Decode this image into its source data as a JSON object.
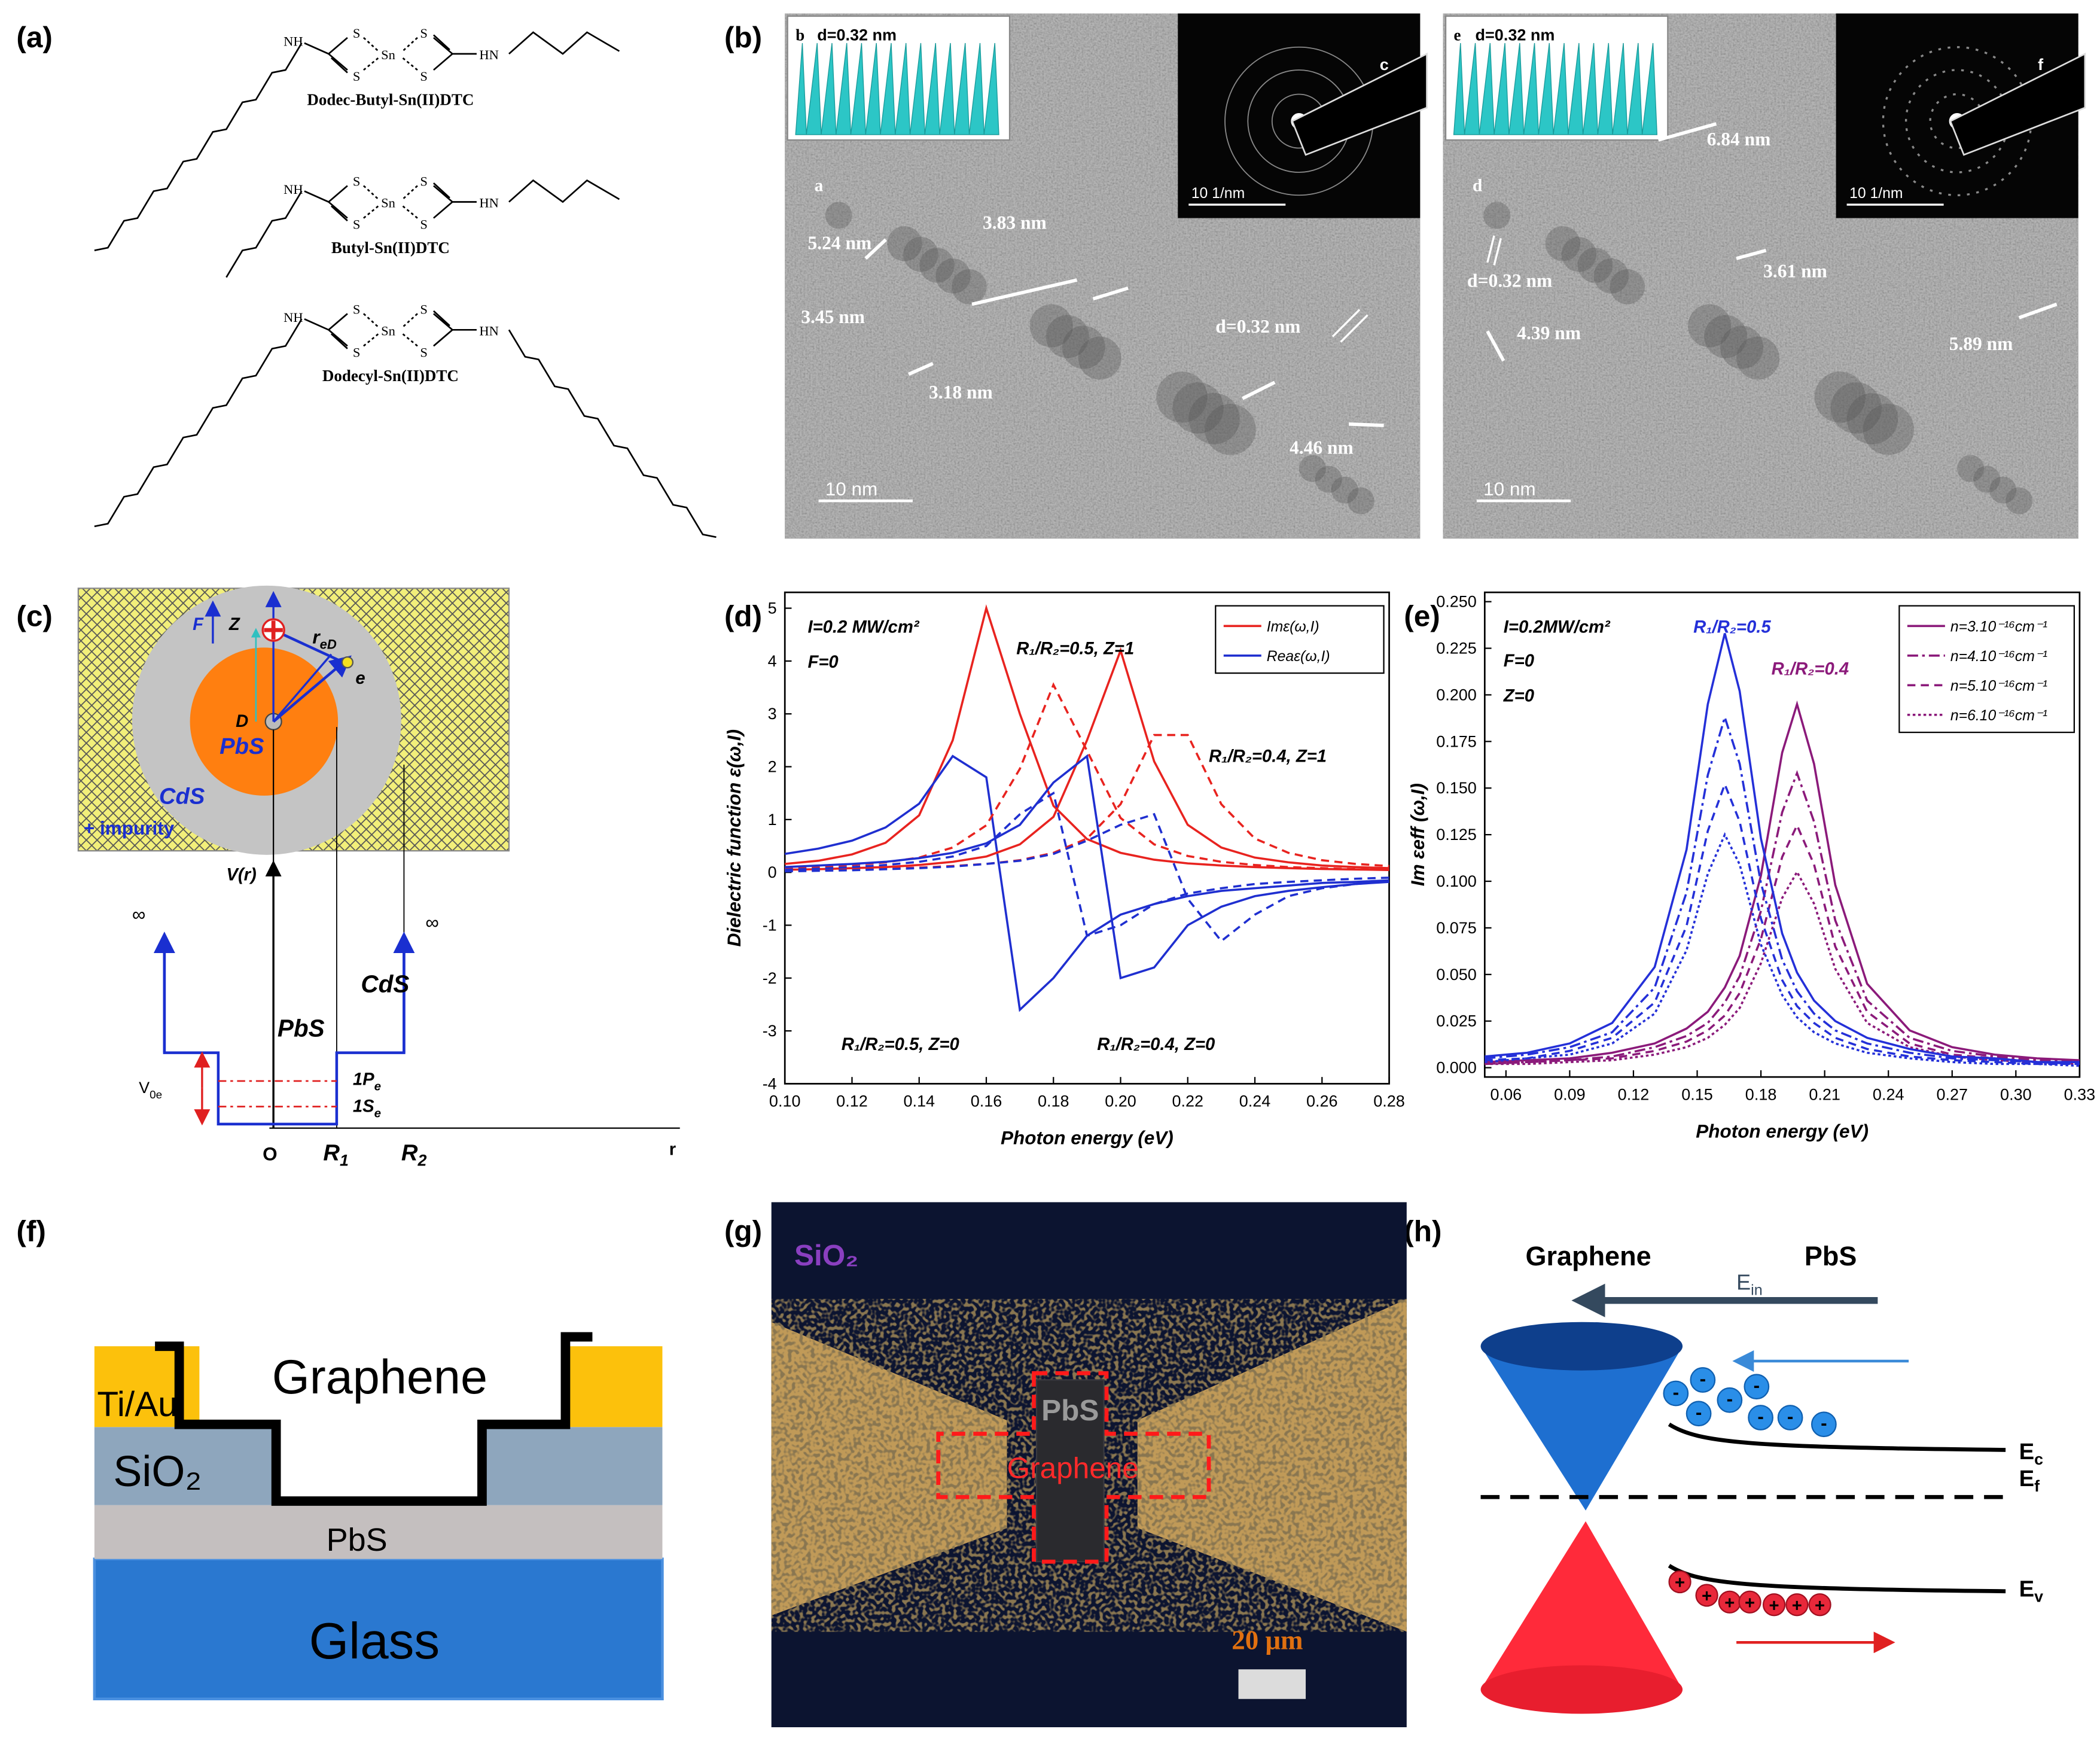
{
  "panel_labels": [
    "(a)",
    "(b)",
    "(c)",
    "(d)",
    "(e)",
    "(f)",
    "(g)",
    "(h)"
  ],
  "molecules": {
    "names": [
      "Dodec-Butyl-Sn(II)DTC",
      "Butyl-Sn(II)DTC",
      "Dodecyl-Sn(II)DTC"
    ],
    "nh": "NH",
    "hn": "HN",
    "s": "S",
    "sn": "Sn"
  },
  "tem": [
    {
      "fft_label": "b",
      "spacing": "d=0.32 nm",
      "saed_label": "c",
      "saed_scale": "10 1/nm",
      "image_label": "a",
      "sizes": [
        "5.24 nm",
        "3.83 nm",
        "3.45 nm",
        "3.18 nm",
        "4.46 nm"
      ],
      "lattice": "d=0.32 nm",
      "scale": "10 nm"
    },
    {
      "fft_label": "e",
      "spacing": "d=0.32 nm",
      "saed_label": "f",
      "saed_scale": "10 1/nm",
      "image_label": "d",
      "sizes": [
        "6.84 nm",
        "3.61 nm",
        "4.39 nm",
        "5.89 nm"
      ],
      "lattice": "d=0.32 nm",
      "scale": "10 nm"
    }
  ],
  "core_shell": {
    "field": "F",
    "z": "Z",
    "r_ed": {
      "base": "r",
      "sub": "eD"
    },
    "electron": "e",
    "d": "D",
    "core": "PbS",
    "shell": "CdS",
    "impurity": "+ impurity",
    "potential": "V(r)",
    "infinity": "∞",
    "shell_region": "CdS",
    "core_region": "PbS",
    "level_1p": {
      "base": "1P",
      "sub": "e"
    },
    "level_1s": {
      "base": "1S",
      "sub": "e"
    },
    "v0e": {
      "base": "V",
      "sub": "0e"
    },
    "origin": "O",
    "r1": {
      "base": "R",
      "sub": "1"
    },
    "r2": {
      "base": "R",
      "sub": "2"
    },
    "r_axis": "r"
  },
  "chart_data": [
    {
      "type": "line",
      "x_label": "Photon energy (eV)",
      "y_label": "Dielectric function ε(ω,I)",
      "x": [
        0.1,
        0.11,
        0.12,
        0.13,
        0.14,
        0.15,
        0.16,
        0.17,
        0.18,
        0.19,
        0.2,
        0.21,
        0.22,
        0.23,
        0.24,
        0.25,
        0.26,
        0.27,
        0.28
      ],
      "xlim": [
        0.1,
        0.28
      ],
      "xticks": [
        {
          "value": 0.1,
          "label": "0.10"
        },
        0.12,
        0.14,
        0.16,
        0.18,
        {
          "value": 0.2,
          "label": "0.20"
        },
        0.22,
        0.24,
        0.26,
        0.28
      ],
      "ylim": [
        -4,
        5.3
      ],
      "yticks": [
        -4,
        -3,
        -2,
        -1,
        0,
        1,
        2,
        3,
        4,
        5
      ],
      "legend": "upper right",
      "annotations": [
        {
          "text": "I=0.2 MW/cm²",
          "color": "#000000"
        },
        {
          "text": "F=0",
          "color": "#000000"
        },
        {
          "text": "R₁/R₂=0.5, Z=1",
          "color": "#000000"
        },
        {
          "text": "R₁/R₂=0.4, Z=1",
          "color": "#000000"
        },
        {
          "text": "R₁/R₂=0.5, Z=0",
          "color": "#000000"
        },
        {
          "text": "R₁/R₂=0.4, Z=0",
          "color": "#000000"
        }
      ],
      "series": [
        {
          "name": "Imε(ω,I)",
          "color": "#e8231f",
          "dash": "solid",
          "values": [
            0.16,
            0.22,
            0.34,
            0.56,
            1.08,
            2.5,
            5.0,
            3.0,
            1.26,
            0.63,
            0.37,
            0.24,
            0.17,
            0.13,
            0.1,
            0.08,
            0.065,
            0.055,
            0.045
          ]
        },
        {
          "name": "Reaε(ω,I)",
          "color": "#1f2fd0",
          "dash": "solid",
          "values": [
            0.35,
            0.45,
            0.6,
            0.85,
            1.3,
            2.2,
            1.8,
            -2.6,
            -2.0,
            -1.2,
            -0.8,
            -0.6,
            -0.45,
            -0.35,
            -0.3,
            -0.25,
            -0.2,
            -0.18,
            -0.15
          ]
        },
        {
          "color": "#e8231f",
          "dash": "solid",
          "values": [
            0.05,
            0.06,
            0.08,
            0.1,
            0.14,
            0.2,
            0.3,
            0.53,
            1.05,
            2.5,
            4.2,
            2.1,
            0.9,
            0.47,
            0.28,
            0.19,
            0.13,
            0.1,
            0.08
          ]
        },
        {
          "color": "#e8231f",
          "dash": "dash",
          "values": [
            0.08,
            0.1,
            0.14,
            0.19,
            0.28,
            0.47,
            0.89,
            1.96,
            3.55,
            2.3,
            1.03,
            0.53,
            0.31,
            0.2,
            0.14,
            0.1,
            0.08,
            0.06,
            0.05
          ]
        },
        {
          "color": "#e8231f",
          "dash": "dash",
          "values": [
            0.04,
            0.05,
            0.06,
            0.07,
            0.09,
            0.12,
            0.16,
            0.23,
            0.37,
            0.64,
            1.29,
            2.6,
            2.6,
            1.29,
            0.64,
            0.37,
            0.23,
            0.16,
            0.12
          ]
        },
        {
          "color": "#1f2fd0",
          "dash": "solid",
          "values": [
            0.1,
            0.13,
            0.16,
            0.2,
            0.27,
            0.37,
            0.55,
            0.9,
            1.7,
            2.2,
            -2.0,
            -1.8,
            -1.0,
            -0.65,
            -0.45,
            -0.35,
            -0.28,
            -0.22,
            -0.18
          ]
        },
        {
          "color": "#1f2fd0",
          "dash": "dash",
          "values": [
            0.05,
            0.07,
            0.1,
            0.14,
            0.2,
            0.3,
            0.5,
            1.1,
            1.5,
            -1.2,
            -1.0,
            -0.6,
            -0.4,
            -0.3,
            -0.22,
            -0.18,
            -0.15,
            -0.12,
            -0.1
          ]
        },
        {
          "color": "#1f2fd0",
          "dash": "dash",
          "values": [
            0.02,
            0.03,
            0.04,
            0.06,
            0.08,
            0.11,
            0.16,
            0.22,
            0.35,
            0.6,
            0.9,
            1.1,
            -0.5,
            -1.3,
            -0.8,
            -0.45,
            -0.3,
            -0.22,
            -0.17
          ]
        }
      ]
    },
    {
      "type": "line",
      "x_label": "Photon energy (eV)",
      "y_label": "Im εeff (ω,I)",
      "x": [
        0.05,
        0.07,
        0.09,
        0.11,
        0.13,
        0.145,
        0.155,
        0.163,
        0.17,
        0.18,
        0.19,
        0.197,
        0.205,
        0.215,
        0.23,
        0.25,
        0.27,
        0.29,
        0.31,
        0.33
      ],
      "xlim": [
        0.05,
        0.33
      ],
      "xticks": [
        0.06,
        0.09,
        0.12,
        0.15,
        0.18,
        0.21,
        0.24,
        0.27,
        {
          "value": 0.3,
          "label": "0.30"
        },
        0.33
      ],
      "ylim": [
        -0.005,
        0.255
      ],
      "yticks": [
        {
          "value": 0,
          "label": "0.000"
        },
        {
          "value": 0.025,
          "label": "0.025"
        },
        {
          "value": 0.05,
          "label": "0.050"
        },
        {
          "value": 0.075,
          "label": "0.075"
        },
        {
          "value": 0.1,
          "label": "0.100"
        },
        {
          "value": 0.125,
          "label": "0.125"
        },
        {
          "value": 0.15,
          "label": "0.150"
        },
        {
          "value": 0.175,
          "label": "0.175"
        },
        {
          "value": 0.2,
          "label": "0.200"
        },
        {
          "value": 0.225,
          "label": "0.225"
        },
        {
          "value": 0.25,
          "label": "0.250"
        }
      ],
      "legend": "upper right",
      "annotations": [
        {
          "text": "I=0.2MW/cm²",
          "color": "#000000"
        },
        {
          "text": "F=0",
          "color": "#000000"
        },
        {
          "text": "Z=0",
          "color": "#000000"
        },
        {
          "text": "R₁/R₂=0.5",
          "color": "#2430d8"
        },
        {
          "text": "R₁/R₂=0.4",
          "color": "#8b1a7a"
        }
      ],
      "series": [
        {
          "name": "n=3.10⁻¹⁶cm⁻¹",
          "color": "#8b1a7a",
          "dash": "solid",
          "values": [
            0.003,
            0.004,
            0.005,
            0.008,
            0.013,
            0.021,
            0.03,
            0.043,
            0.06,
            0.103,
            0.169,
            0.195,
            0.163,
            0.098,
            0.045,
            0.02,
            0.011,
            0.007,
            0.005,
            0.004
          ]
        },
        {
          "name": "n=4.10⁻¹⁶cm⁻¹",
          "color": "#8b1a7a",
          "dash": "dashdot",
          "values": [
            0.002,
            0.003,
            0.004,
            0.006,
            0.011,
            0.017,
            0.024,
            0.035,
            0.049,
            0.084,
            0.137,
            0.158,
            0.132,
            0.079,
            0.036,
            0.016,
            0.009,
            0.006,
            0.004,
            0.003
          ]
        },
        {
          "name": "n=5.10⁻¹⁶cm⁻¹",
          "color": "#8b1a7a",
          "dash": "dash",
          "values": [
            0.002,
            0.003,
            0.004,
            0.005,
            0.009,
            0.014,
            0.02,
            0.028,
            0.04,
            0.069,
            0.113,
            0.13,
            0.109,
            0.065,
            0.03,
            0.013,
            0.007,
            0.005,
            0.003,
            0.002
          ]
        },
        {
          "name": "n=6.10⁻¹⁶cm⁻¹",
          "color": "#8b1a7a",
          "dash": "dot",
          "values": [
            0.002,
            0.002,
            0.003,
            0.004,
            0.007,
            0.011,
            0.016,
            0.023,
            0.032,
            0.056,
            0.091,
            0.105,
            0.088,
            0.053,
            0.024,
            0.011,
            0.006,
            0.004,
            0.003,
            0.002
          ]
        },
        {
          "color": "#2430d8",
          "dash": "solid",
          "values": [
            0.006,
            0.008,
            0.013,
            0.024,
            0.054,
            0.117,
            0.195,
            0.233,
            0.202,
            0.123,
            0.072,
            0.051,
            0.036,
            0.025,
            0.016,
            0.01,
            0.006,
            0.005,
            0.003,
            0.003
          ]
        },
        {
          "color": "#2430d8",
          "dash": "dashdot",
          "values": [
            0.005,
            0.007,
            0.011,
            0.019,
            0.043,
            0.094,
            0.157,
            0.188,
            0.163,
            0.099,
            0.058,
            0.041,
            0.029,
            0.02,
            0.013,
            0.008,
            0.005,
            0.004,
            0.003,
            0.002
          ]
        },
        {
          "color": "#2430d8",
          "dash": "dash",
          "values": [
            0.004,
            0.005,
            0.009,
            0.016,
            0.035,
            0.076,
            0.127,
            0.152,
            0.132,
            0.08,
            0.047,
            0.033,
            0.024,
            0.016,
            0.01,
            0.006,
            0.004,
            0.003,
            0.002,
            0.002
          ]
        },
        {
          "color": "#2430d8",
          "dash": "dot",
          "values": [
            0.003,
            0.005,
            0.007,
            0.013,
            0.029,
            0.063,
            0.104,
            0.125,
            0.109,
            0.066,
            0.039,
            0.027,
            0.019,
            0.013,
            0.008,
            0.005,
            0.003,
            0.002,
            0.002,
            0.001
          ]
        }
      ]
    }
  ],
  "device": {
    "contact": "Ti/Au",
    "graphene": "Graphene",
    "oxide": "SiO₂",
    "absorber": "PbS",
    "substrate": "Glass"
  },
  "micrograph": {
    "oxide": "SiO₂",
    "absorber": "PbS",
    "graphene": "Graphene",
    "scale": "20 μm"
  },
  "band": {
    "left": "Graphene",
    "right": "PbS",
    "field": {
      "base": "E",
      "sub": "in"
    },
    "ec": {
      "base": "E",
      "sub": "c"
    },
    "ef": {
      "base": "E",
      "sub": "f"
    },
    "ev": {
      "base": "E",
      "sub": "v"
    },
    "electron": "-",
    "hole": "+"
  }
}
